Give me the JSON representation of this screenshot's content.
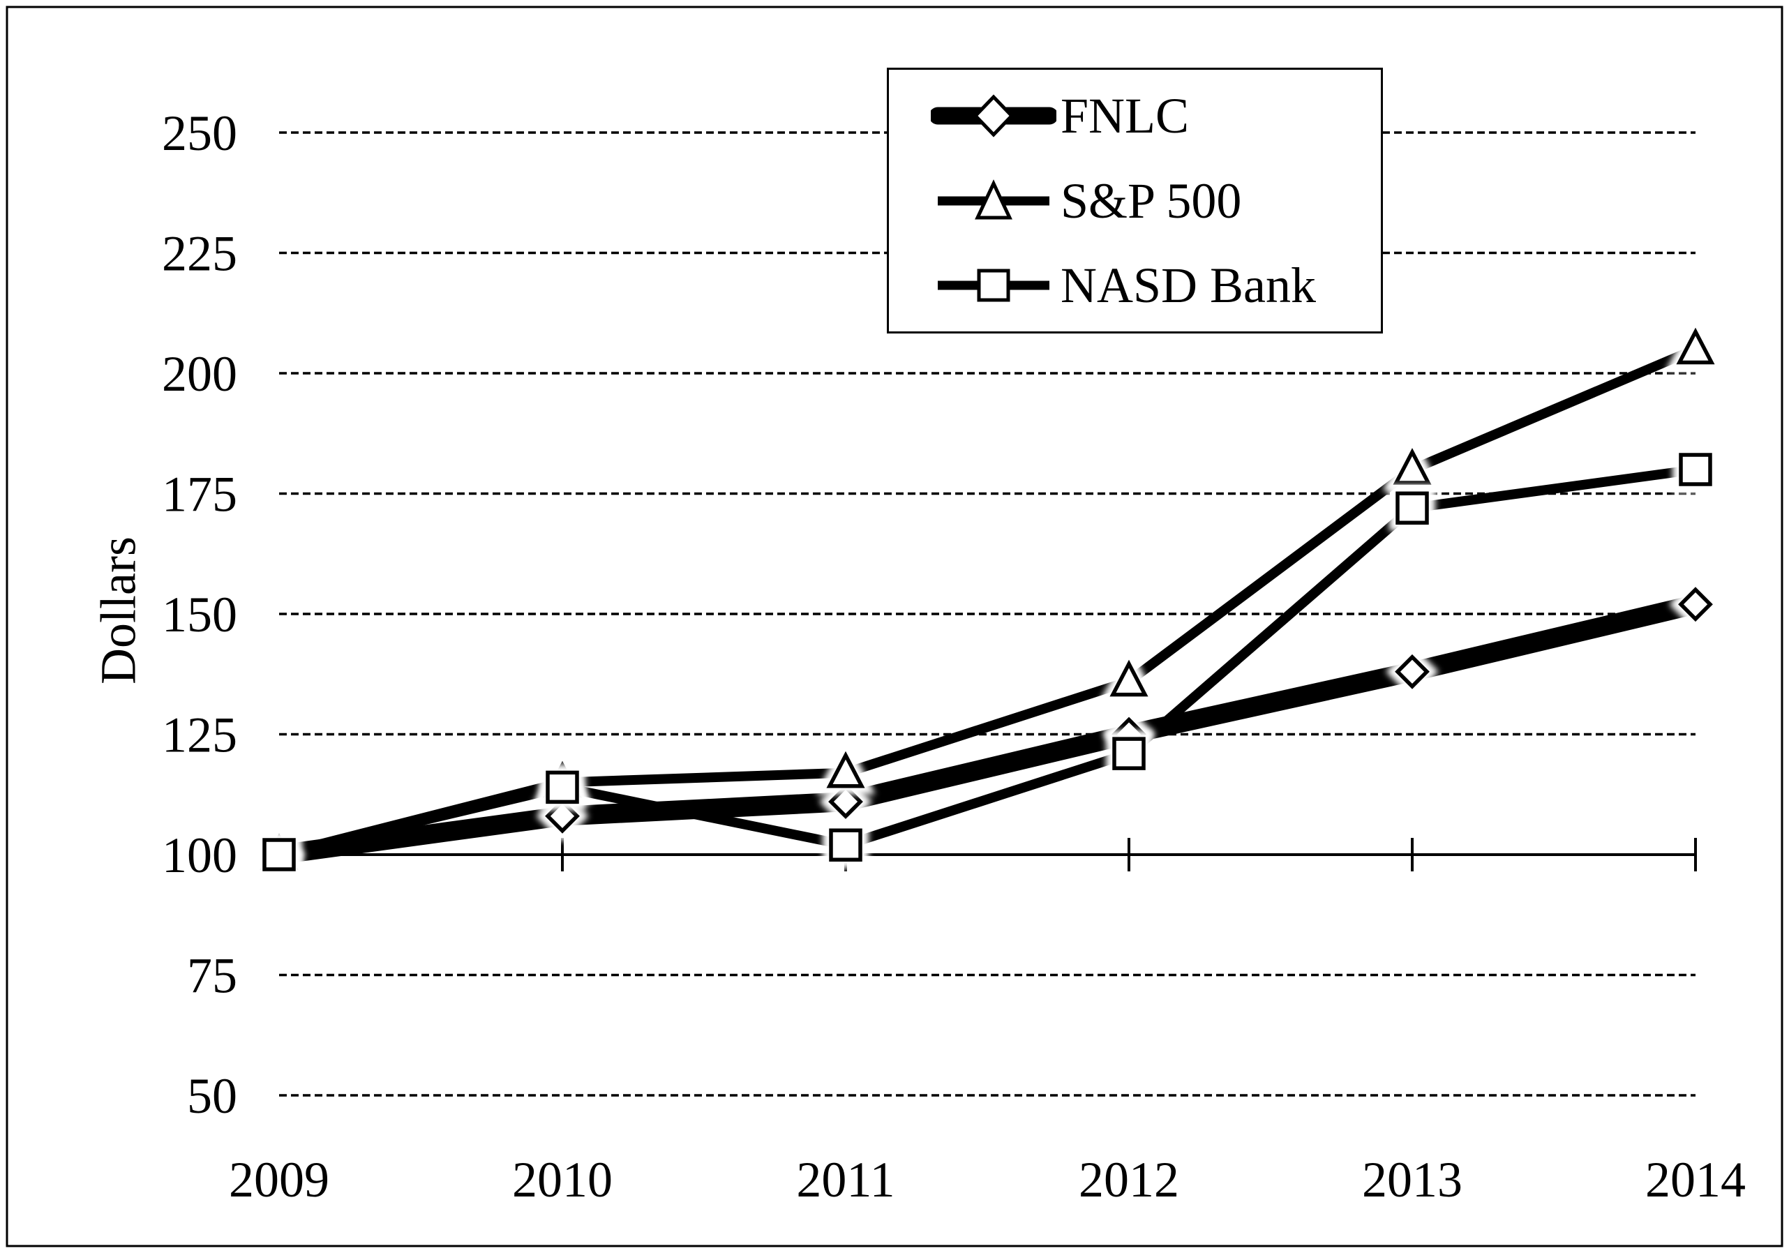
{
  "figure": {
    "description": "Cumulative total return performance line chart",
    "background_color": "#ffffff",
    "border_color": "#000000",
    "line_color": "#000000",
    "marker_fill_color": "#ffffff"
  },
  "chart_data": {
    "type": "line",
    "title": "",
    "xlabel": "",
    "ylabel": "Dollars",
    "x": [
      "2009",
      "2010",
      "2011",
      "2012",
      "2013",
      "2014"
    ],
    "series": [
      {
        "name": "FNLC",
        "marker": "diamond",
        "line_style": "thick",
        "values": [
          100,
          108,
          111,
          125,
          138,
          152
        ]
      },
      {
        "name": "S&P 500",
        "marker": "triangle",
        "line_style": "thin",
        "values": [
          100,
          115,
          117,
          136,
          180,
          205
        ]
      },
      {
        "name": "NASD Bank",
        "marker": "square",
        "line_style": "thin",
        "values": [
          100,
          114,
          102,
          121,
          172,
          180
        ]
      }
    ],
    "ylim": [
      50,
      250
    ],
    "y_ticks": [
      50,
      75,
      100,
      125,
      150,
      175,
      200,
      225,
      250
    ],
    "grid": "horizontal-dashed",
    "axis_cross_value": 100,
    "legend_position": "top-center",
    "legend_entries": [
      "FNLC",
      "S&P 500",
      "NASD Bank"
    ]
  }
}
